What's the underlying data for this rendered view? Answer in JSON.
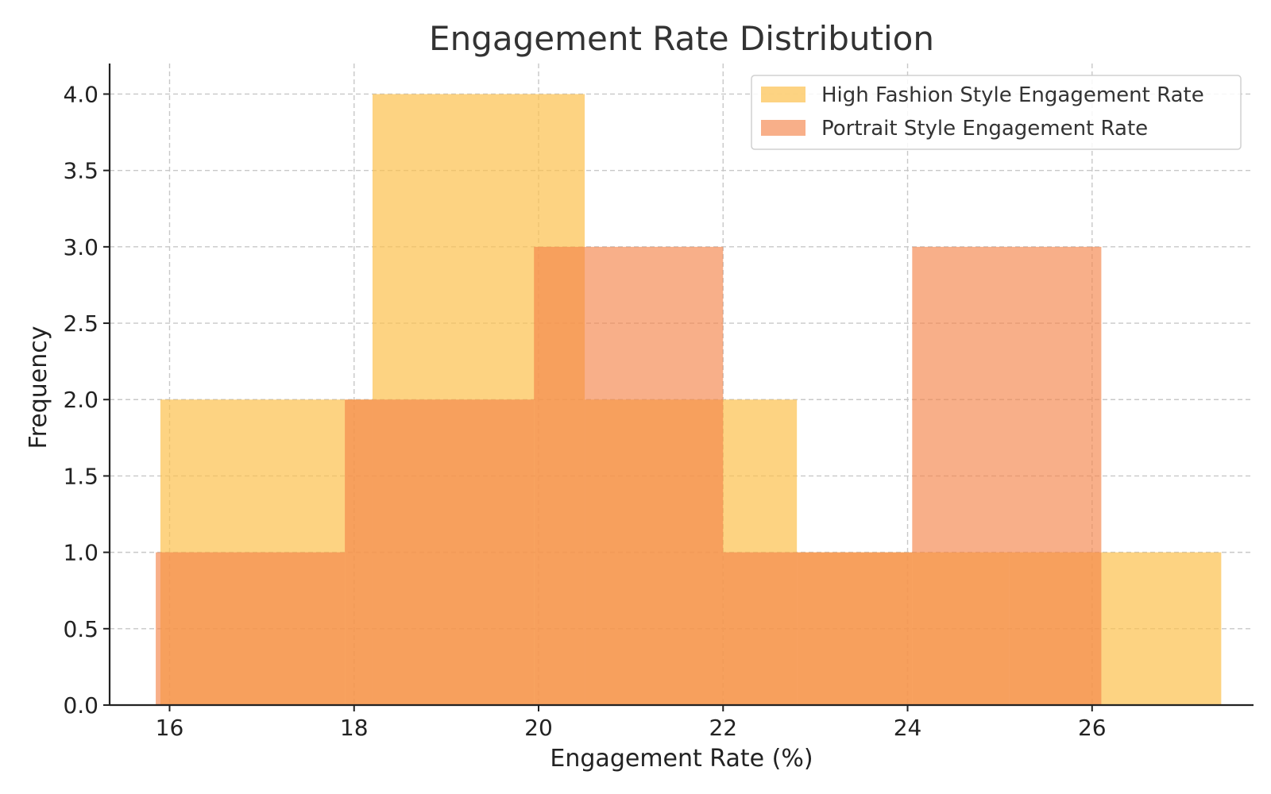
{
  "chart_data": {
    "type": "bar",
    "title": "Engagement Rate Distribution",
    "xlabel": "Engagement Rate (%)",
    "ylabel": "Frequency",
    "xlim": [
      15.35,
      27.75
    ],
    "ylim": [
      0,
      4.2
    ],
    "xticks": [
      16,
      18,
      20,
      22,
      24,
      26
    ],
    "xtick_labels": [
      "16",
      "18",
      "20",
      "22",
      "24",
      "26"
    ],
    "yticks": [
      0,
      0.5,
      1,
      1.5,
      2,
      2.5,
      3,
      3.5,
      4
    ],
    "ytick_labels": [
      "0.0",
      "0.5",
      "1.0",
      "1.5",
      "2.0",
      "2.5",
      "3.0",
      "3.5",
      "4.0"
    ],
    "grid": true,
    "legend_position": "top-right",
    "series": [
      {
        "name": "High Fashion Style Engagement Rate",
        "color": "#FCC04D",
        "opacity": 0.7,
        "bins": [
          15.9,
          18.2,
          20.5,
          22.8,
          25.1,
          27.4
        ],
        "counts": [
          2,
          4,
          2,
          1,
          1
        ]
      },
      {
        "name": "Portrait Style Engagement Rate",
        "color": "#F4844A",
        "opacity": 0.65,
        "bins": [
          15.85,
          17.9,
          19.95,
          22.0,
          24.05,
          26.1
        ],
        "counts": [
          1,
          2,
          3,
          1,
          3
        ]
      }
    ]
  }
}
